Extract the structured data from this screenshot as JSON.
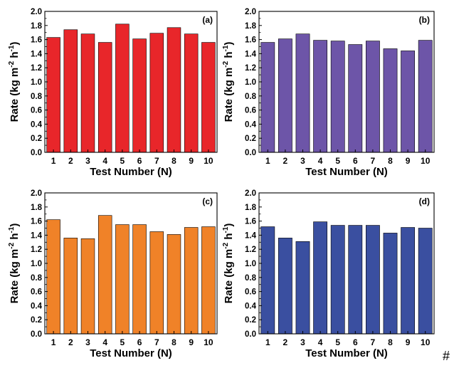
{
  "chart_data": [
    {
      "type": "bar",
      "panel_label": "(a)",
      "categories": [
        "1",
        "2",
        "3",
        "4",
        "5",
        "6",
        "7",
        "8",
        "9",
        "10"
      ],
      "values": [
        1.63,
        1.74,
        1.68,
        1.56,
        1.82,
        1.61,
        1.69,
        1.77,
        1.68,
        1.56
      ],
      "xlabel": "Test Number (N)",
      "ylabel": [
        "Rate (kg m",
        "-2",
        " h",
        "-1",
        ")"
      ],
      "ylim": [
        0,
        2.0
      ],
      "yticks": [
        "0.0",
        "0.2",
        "0.4",
        "0.6",
        "0.8",
        "1.0",
        "1.2",
        "1.4",
        "1.6",
        "1.8",
        "2.0"
      ],
      "color": "#e8262a",
      "grid": false
    },
    {
      "type": "bar",
      "panel_label": "(b)",
      "categories": [
        "1",
        "2",
        "3",
        "4",
        "5",
        "6",
        "7",
        "8",
        "9",
        "10"
      ],
      "values": [
        1.56,
        1.61,
        1.68,
        1.59,
        1.58,
        1.53,
        1.58,
        1.47,
        1.44,
        1.59
      ],
      "xlabel": "Test Number (N)",
      "ylabel": [
        "Rate (kg m",
        "-2",
        " h",
        "-1",
        ")"
      ],
      "ylim": [
        0,
        2.0
      ],
      "yticks": [
        "0.0",
        "0.2",
        "0.4",
        "0.6",
        "0.8",
        "1.0",
        "1.2",
        "1.4",
        "1.6",
        "1.8",
        "2.0"
      ],
      "color": "#6d55a8",
      "grid": false
    },
    {
      "type": "bar",
      "panel_label": "(c)",
      "categories": [
        "1",
        "2",
        "3",
        "4",
        "5",
        "6",
        "7",
        "8",
        "9",
        "10"
      ],
      "values": [
        1.62,
        1.36,
        1.35,
        1.68,
        1.55,
        1.55,
        1.45,
        1.41,
        1.51,
        1.52
      ],
      "xlabel": "Test Number (N)",
      "ylabel": [
        "Rate (kg m",
        "-2",
        " h",
        "-1",
        ")"
      ],
      "ylim": [
        0,
        2.0
      ],
      "yticks": [
        "0.0",
        "0.2",
        "0.4",
        "0.6",
        "0.8",
        "1.0",
        "1.2",
        "1.4",
        "1.6",
        "1.8",
        "2.0"
      ],
      "color": "#f08228",
      "grid": false
    },
    {
      "type": "bar",
      "panel_label": "(d)",
      "categories": [
        "1",
        "2",
        "3",
        "4",
        "5",
        "6",
        "7",
        "8",
        "9",
        "10"
      ],
      "values": [
        1.52,
        1.36,
        1.31,
        1.59,
        1.54,
        1.54,
        1.54,
        1.43,
        1.51,
        1.5
      ],
      "xlabel": "Test Number (N)",
      "ylabel": [
        "Rate (kg m",
        "-2",
        " h",
        "-1",
        ")"
      ],
      "ylim": [
        0,
        2.0
      ],
      "yticks": [
        "0.0",
        "0.2",
        "0.4",
        "0.6",
        "0.8",
        "1.0",
        "1.2",
        "1.4",
        "1.6",
        "1.8",
        "2.0"
      ],
      "color": "#3a4fa0",
      "grid": false
    }
  ],
  "stray_mark": "#"
}
